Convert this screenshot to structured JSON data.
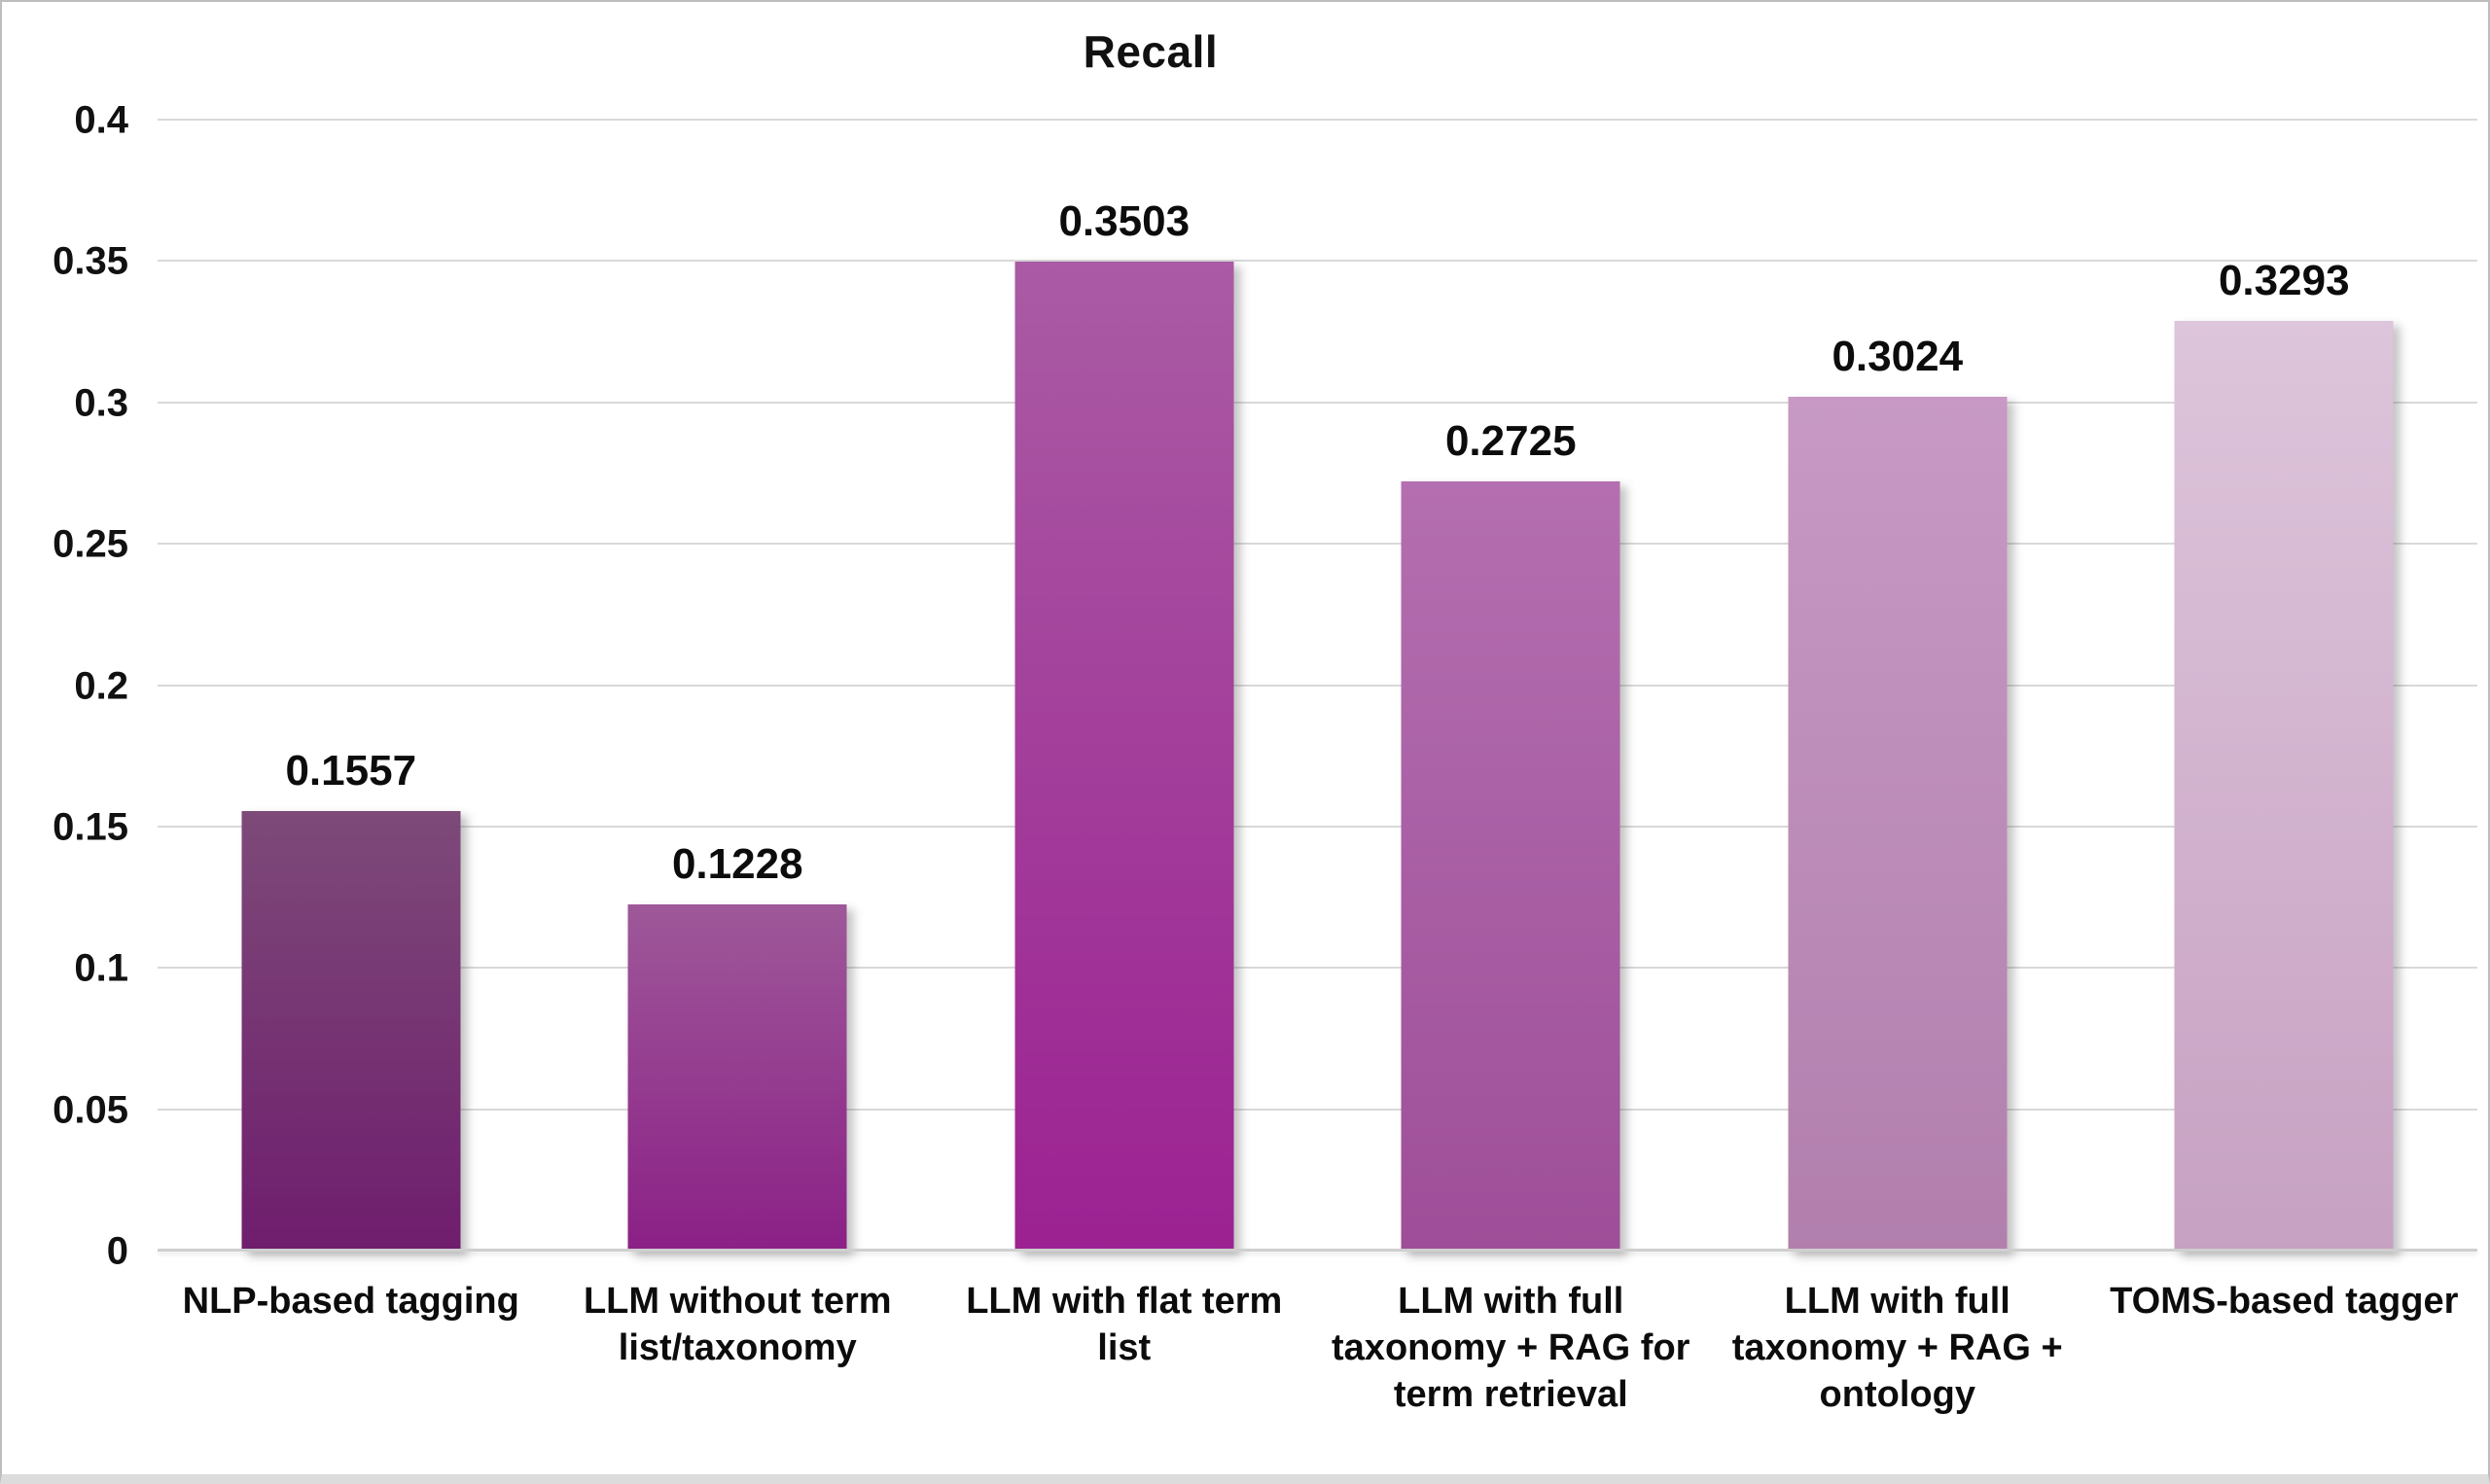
{
  "chart_data": {
    "type": "bar",
    "title": "Recall",
    "categories": [
      "NLP-based tagging",
      "LLM without term list/taxonomy",
      "LLM with flat term list",
      "LLM with full taxonomy + RAG for term retrieval",
      "LLM with full taxonomy + RAG + ontology",
      "TOMS-based tagger"
    ],
    "values": [
      0.1557,
      0.1228,
      0.3503,
      0.2725,
      0.3024,
      0.3293
    ],
    "value_labels": [
      "0.1557",
      "0.1228",
      "0.3503",
      "0.2725",
      "0.3024",
      "0.3293"
    ],
    "xlabel": "",
    "ylabel": "",
    "ylim": [
      0,
      0.4
    ],
    "ytick_step": 0.05,
    "yticks": [
      "0",
      "0.05",
      "0.1",
      "0.15",
      "0.2",
      "0.25",
      "0.3",
      "0.35",
      "0.4"
    ],
    "grid": true,
    "legend": false,
    "bar_gradients": [
      {
        "top": "#7d4a79",
        "bottom": "#6f1d6d"
      },
      {
        "top": "#9e5899",
        "bottom": "#8b2086"
      },
      {
        "top": "#aa5ba4",
        "bottom": "#9c2192"
      },
      {
        "top": "#b46fb0",
        "bottom": "#9e4e98"
      },
      {
        "top": "#c799c4",
        "bottom": "#b27fad"
      },
      {
        "top": "#ddc5db",
        "bottom": "#c7a1c2"
      }
    ],
    "colors": {
      "gridline": "#d9d9d9",
      "axis_line": "#cfcfcf",
      "text": "#111111",
      "background": "#ffffff",
      "border": "#bdbdbd"
    }
  }
}
